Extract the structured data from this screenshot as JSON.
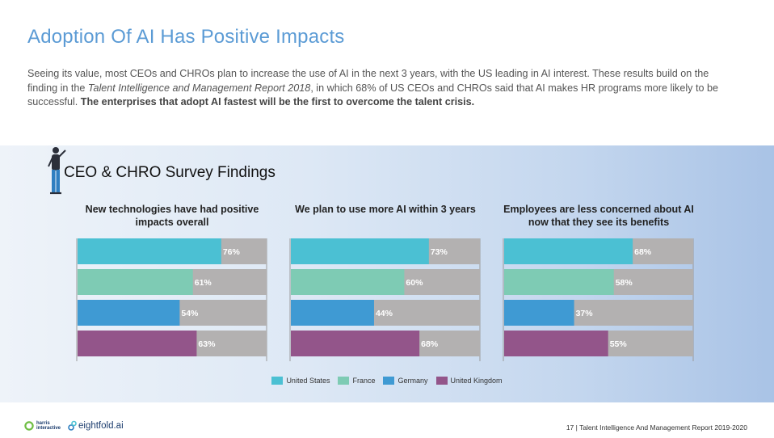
{
  "page": {
    "title": "Adoption Of AI Has Positive Impacts",
    "intro": {
      "part1": "Seeing its value, most CEOs and CHROs plan to increase the use of AI in the next 3 years, with the US leading in AI interest. These results build on the finding in the ",
      "italic": "Talent Intelligence and Management Report 2018",
      "part2": ", in which 68% of US CEOs and CHROs said that AI makes HR programs more likely to be successful. ",
      "bold": "The enterprises that adopt AI fastest will be the first to overcome the talent crisis."
    }
  },
  "survey_title": "CEO & CHRO Survey Findings",
  "chart_data": [
    {
      "type": "bar",
      "orientation": "horizontal",
      "title": "New technologies have had positive impacts overall",
      "categories": [
        "United States",
        "France",
        "Germany",
        "United Kingdom"
      ],
      "values": [
        76,
        61,
        54,
        63
      ],
      "labels": [
        "76%",
        "61%",
        "54%",
        "63%"
      ],
      "xlim": [
        0,
        100
      ]
    },
    {
      "type": "bar",
      "orientation": "horizontal",
      "title": "We plan to use more AI within 3 years",
      "categories": [
        "United States",
        "France",
        "Germany",
        "United Kingdom"
      ],
      "values": [
        73,
        60,
        44,
        68
      ],
      "labels": [
        "73%",
        "60%",
        "44%",
        "68%"
      ],
      "xlim": [
        0,
        100
      ]
    },
    {
      "type": "bar",
      "orientation": "horizontal",
      "title": "Employees are less concerned about AI now that they see its benefits",
      "categories": [
        "United States",
        "France",
        "Germany",
        "United Kingdom"
      ],
      "values": [
        68,
        58,
        37,
        55
      ],
      "labels": [
        "68%",
        "58%",
        "37%",
        "55%"
      ],
      "xlim": [
        0,
        100
      ]
    }
  ],
  "legend": [
    {
      "label": "United States",
      "color": "#4bc0d3"
    },
    {
      "label": "France",
      "color": "#7ecbb4"
    },
    {
      "label": "Germany",
      "color": "#3f9ad3"
    },
    {
      "label": "United Kingdom",
      "color": "#93558a"
    }
  ],
  "colors": {
    "track": "#b3b1b1",
    "title": "#5b9bd5"
  },
  "footer": {
    "logo1_line1": "harris",
    "logo1_line2": "interactive",
    "logo2": "eightfold.ai",
    "page_number": "17",
    "report": "Talent Intelligence And Management Report 2019-2020"
  }
}
